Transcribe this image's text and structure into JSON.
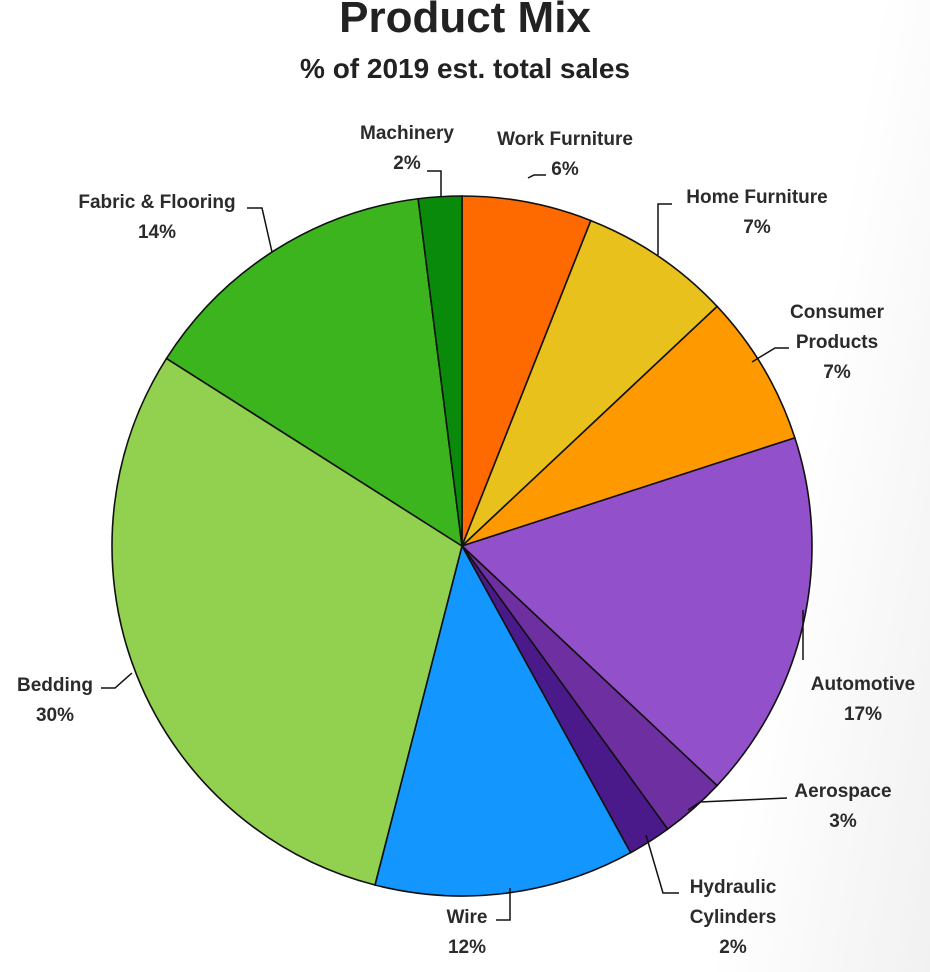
{
  "chart_data": {
    "type": "pie",
    "title": "Product Mix",
    "subtitle": "% of 2019 est. total sales",
    "slices": [
      {
        "label": [
          "Work Furniture"
        ],
        "pct_label": "6%",
        "value": 6,
        "color": "#ff6a00"
      },
      {
        "label": [
          "Home Furniture"
        ],
        "pct_label": "7%",
        "value": 7,
        "color": "#e8c11c"
      },
      {
        "label": [
          "Consumer",
          "Products"
        ],
        "pct_label": "7%",
        "value": 7,
        "color": "#ff9900"
      },
      {
        "label": [
          "Automotive"
        ],
        "pct_label": "17%",
        "value": 17,
        "color": "#9250cb"
      },
      {
        "label": [
          "Aerospace"
        ],
        "pct_label": "3%",
        "value": 3,
        "color": "#6e2fa0"
      },
      {
        "label": [
          "Hydraulic",
          "Cylinders"
        ],
        "pct_label": "2%",
        "value": 2,
        "color": "#4a1a8a"
      },
      {
        "label": [
          "Wire"
        ],
        "pct_label": "12%",
        "value": 12,
        "color": "#1496ff"
      },
      {
        "label": [
          "Bedding"
        ],
        "pct_label": "30%",
        "value": 30,
        "color": "#92d050"
      },
      {
        "label": [
          "Fabric & Flooring"
        ],
        "pct_label": "14%",
        "value": 14,
        "color": "#3bb41e"
      },
      {
        "label": [
          "Machinery"
        ],
        "pct_label": "2%",
        "value": 2,
        "color": "#0a8a0a"
      }
    ]
  }
}
